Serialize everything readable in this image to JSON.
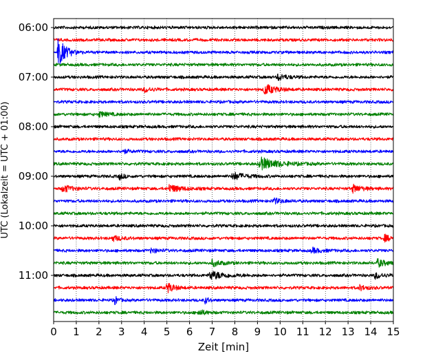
{
  "chart_data": {
    "type": "line",
    "title": "",
    "xlabel": "Zeit  [min]",
    "ylabel": "UTC (Lokalzeit = UTC + 01:00)",
    "xlim": [
      0,
      15
    ],
    "x_ticks": [
      0,
      1,
      2,
      3,
      4,
      5,
      6,
      7,
      8,
      9,
      10,
      11,
      12,
      13,
      14,
      15
    ],
    "y_tick_labels": [
      "06:00",
      "07:00",
      "08:00",
      "09:00",
      "10:00",
      "11:00"
    ],
    "grid": "vertical dotted",
    "trace_interval_min": 15,
    "traces": [
      {
        "start": "06:00",
        "color": "#000000"
      },
      {
        "start": "06:15",
        "color": "#ff0000"
      },
      {
        "start": "06:30",
        "color": "#0000ff",
        "events": [
          {
            "t": 0.2,
            "amp": 2.4,
            "dur": 0.5
          }
        ]
      },
      {
        "start": "06:45",
        "color": "#008000"
      },
      {
        "start": "07:00",
        "color": "#000000",
        "events": [
          {
            "t": 9.9,
            "amp": 0.5,
            "dur": 0.6
          }
        ]
      },
      {
        "start": "07:15",
        "color": "#ff0000",
        "events": [
          {
            "t": 9.3,
            "amp": 0.9,
            "dur": 0.7
          },
          {
            "t": 4.0,
            "amp": 0.4,
            "dur": 0.5
          }
        ]
      },
      {
        "start": "07:30",
        "color": "#0000ff"
      },
      {
        "start": "07:45",
        "color": "#008000",
        "events": [
          {
            "t": 2.0,
            "amp": 0.4,
            "dur": 0.6
          }
        ]
      },
      {
        "start": "08:00",
        "color": "#000000"
      },
      {
        "start": "08:15",
        "color": "#ff0000"
      },
      {
        "start": "08:30",
        "color": "#0000ff",
        "events": [
          {
            "t": 3.0,
            "amp": 0.3,
            "dur": 0.5
          }
        ]
      },
      {
        "start": "08:45",
        "color": "#008000",
        "events": [
          {
            "t": 9.1,
            "amp": 1.0,
            "dur": 1.2
          }
        ]
      },
      {
        "start": "09:00",
        "color": "#000000",
        "events": [
          {
            "t": 2.9,
            "amp": 0.5,
            "dur": 0.3
          },
          {
            "t": 7.9,
            "amp": 0.6,
            "dur": 0.8
          }
        ]
      },
      {
        "start": "09:15",
        "color": "#ff0000",
        "events": [
          {
            "t": 0.4,
            "amp": 0.6,
            "dur": 0.6
          },
          {
            "t": 5.1,
            "amp": 0.6,
            "dur": 0.8
          },
          {
            "t": 13.2,
            "amp": 0.6,
            "dur": 0.6
          }
        ]
      },
      {
        "start": "09:30",
        "color": "#0000ff",
        "events": [
          {
            "t": 9.7,
            "amp": 0.4,
            "dur": 0.6
          }
        ]
      },
      {
        "start": "09:45",
        "color": "#008000"
      },
      {
        "start": "10:00",
        "color": "#000000"
      },
      {
        "start": "10:15",
        "color": "#ff0000",
        "events": [
          {
            "t": 2.6,
            "amp": 0.4,
            "dur": 0.6
          },
          {
            "t": 14.6,
            "amp": 0.5,
            "dur": 0.5
          }
        ]
      },
      {
        "start": "10:30",
        "color": "#0000ff",
        "events": [
          {
            "t": 4.3,
            "amp": 0.4,
            "dur": 0.4
          },
          {
            "t": 11.4,
            "amp": 0.4,
            "dur": 0.6
          }
        ]
      },
      {
        "start": "10:45",
        "color": "#008000",
        "events": [
          {
            "t": 7.0,
            "amp": 0.5,
            "dur": 0.6
          },
          {
            "t": 14.3,
            "amp": 0.6,
            "dur": 0.6
          }
        ]
      },
      {
        "start": "11:00",
        "color": "#000000",
        "events": [
          {
            "t": 6.9,
            "amp": 0.7,
            "dur": 1.0
          },
          {
            "t": 14.2,
            "amp": 0.5,
            "dur": 0.5
          }
        ]
      },
      {
        "start": "11:15",
        "color": "#ff0000",
        "events": [
          {
            "t": 5.0,
            "amp": 0.8,
            "dur": 0.5
          },
          {
            "t": 13.5,
            "amp": 0.4,
            "dur": 0.5
          }
        ]
      },
      {
        "start": "11:30",
        "color": "#0000ff",
        "events": [
          {
            "t": 2.7,
            "amp": 0.7,
            "dur": 0.2
          },
          {
            "t": 6.7,
            "amp": 0.6,
            "dur": 0.2
          }
        ]
      },
      {
        "start": "11:45",
        "color": "#008000",
        "events": [
          {
            "t": 6.4,
            "amp": 0.5,
            "dur": 0.4
          }
        ]
      }
    ]
  }
}
